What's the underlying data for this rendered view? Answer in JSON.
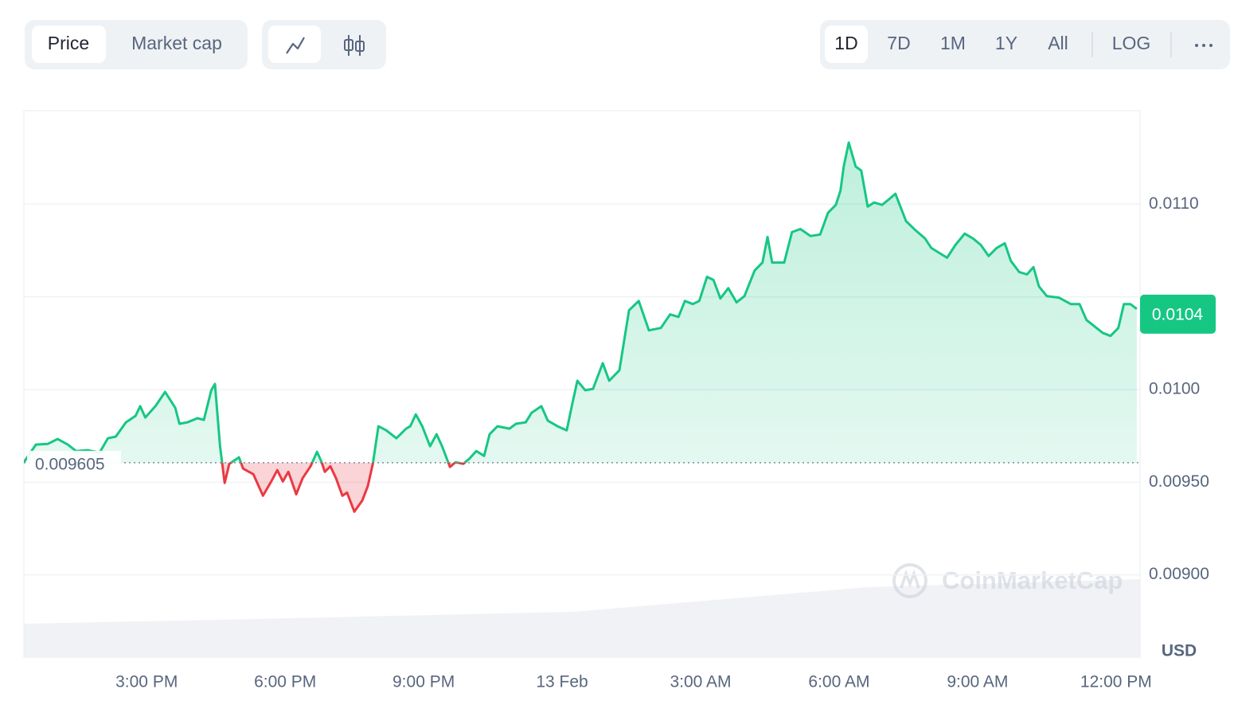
{
  "controls": {
    "metric_tabs": [
      "Price",
      "Market cap"
    ],
    "ranges": [
      "1D",
      "7D",
      "1M",
      "1Y",
      "All"
    ],
    "log": "LOG"
  },
  "chart_data": {
    "type": "line",
    "color": "#16c784",
    "down_color": "#ea3943",
    "baseline": 0.009605,
    "current_price": 0.0104,
    "y_unit": "USD",
    "watermark": "CoinMarketCap",
    "x": [
      12.34,
      12.6,
      12.86,
      13.07,
      13.29,
      13.47,
      13.72,
      13.98,
      14.16,
      14.33,
      14.55,
      14.76,
      14.86,
      14.97,
      15.19,
      15.4,
      15.62,
      15.71,
      15.88,
      16.1,
      16.24,
      16.4,
      16.48,
      16.59,
      16.69,
      16.79,
      17,
      17.09,
      17.31,
      17.52,
      17.69,
      17.83,
      17.95,
      18.07,
      18.24,
      18.38,
      18.55,
      18.69,
      18.79,
      18.86,
      18.98,
      19.1,
      19.24,
      19.34,
      19.5,
      19.67,
      19.79,
      19.9,
      20.02,
      20.19,
      20.41,
      20.62,
      20.71,
      20.83,
      20.97,
      21.14,
      21.28,
      21.4,
      21.57,
      21.69,
      21.86,
      22,
      22.14,
      22.31,
      22.43,
      22.6,
      22.86,
      23,
      23.21,
      23.34,
      23.55,
      23.69,
      23.9,
      24.1,
      24.21,
      24.33,
      24.5,
      24.67,
      24.88,
      25.02,
      25.24,
      25.45,
      25.66,
      25.88,
      26.14,
      26.34,
      26.52,
      26.66,
      26.83,
      26.97,
      27.14,
      27.28,
      27.43,
      27.6,
      27.78,
      27.95,
      28.17,
      28.34,
      28.45,
      28.55,
      28.81,
      28.98,
      29.16,
      29.38,
      29.59,
      29.76,
      29.93,
      30.03,
      30.1,
      30.21,
      30.36,
      30.48,
      30.62,
      30.76,
      30.93,
      31.1,
      31.22,
      31.45,
      31.66,
      31.86,
      32,
      32.17,
      32.34,
      32.52,
      32.72,
      32.9,
      33.07,
      33.24,
      33.41,
      33.59,
      33.72,
      33.9,
      34.07,
      34.21,
      34.33,
      34.5,
      34.76,
      35.02,
      35.21,
      35.36,
      35.53,
      35.71,
      35.88,
      36.05,
      36.17,
      36.31,
      36.45
    ],
    "values": [
      0.009608,
      0.009703,
      0.009707,
      0.009733,
      0.009703,
      0.009668,
      0.009673,
      0.00966,
      0.009737,
      0.009746,
      0.009823,
      0.009858,
      0.00991,
      0.009849,
      0.00991,
      0.009987,
      0.009901,
      0.009815,
      0.009823,
      0.009845,
      0.009836,
      0.009996,
      0.01003,
      0.009694,
      0.009496,
      0.009599,
      0.009634,
      0.009573,
      0.009543,
      0.009427,
      0.0095,
      0.009565,
      0.009504,
      0.009556,
      0.009435,
      0.009522,
      0.009586,
      0.009664,
      0.009608,
      0.009556,
      0.009586,
      0.009522,
      0.009427,
      0.009444,
      0.009341,
      0.009401,
      0.009479,
      0.009599,
      0.009802,
      0.00978,
      0.009737,
      0.009789,
      0.009802,
      0.009866,
      0.009802,
      0.009694,
      0.009759,
      0.009694,
      0.009582,
      0.009608,
      0.009599,
      0.009629,
      0.009668,
      0.009642,
      0.009759,
      0.009802,
      0.009789,
      0.009815,
      0.009823,
      0.009875,
      0.00991,
      0.009832,
      0.009802,
      0.00978,
      0.00991,
      0.010047,
      0.009996,
      0.010004,
      0.010142,
      0.010047,
      0.010104,
      0.010427,
      0.010478,
      0.010319,
      0.010332,
      0.010405,
      0.010392,
      0.010478,
      0.010461,
      0.010478,
      0.010608,
      0.010591,
      0.010491,
      0.010547,
      0.01047,
      0.010504,
      0.010642,
      0.010685,
      0.010823,
      0.010685,
      0.010685,
      0.010849,
      0.010866,
      0.010828,
      0.010836,
      0.010953,
      0.010996,
      0.011073,
      0.011203,
      0.011332,
      0.011203,
      0.011181,
      0.010987,
      0.011009,
      0.010996,
      0.01103,
      0.011056,
      0.010909,
      0.010858,
      0.010815,
      0.010763,
      0.010737,
      0.010711,
      0.01078,
      0.010841,
      0.010815,
      0.01078,
      0.01072,
      0.010763,
      0.010789,
      0.010694,
      0.010634,
      0.010621,
      0.01066,
      0.010556,
      0.010504,
      0.010496,
      0.010461,
      0.010461,
      0.010375,
      0.010341,
      0.010306,
      0.010289,
      0.010332,
      0.010461,
      0.010461,
      0.010435
    ],
    "xlim": [
      12.34,
      36.52
    ],
    "xticks": [
      {
        "value": 15,
        "label": "3:00 PM"
      },
      {
        "value": 18,
        "label": "6:00 PM"
      },
      {
        "value": 21,
        "label": "9:00 PM"
      },
      {
        "value": 24,
        "label": "13 Feb"
      },
      {
        "value": 27,
        "label": "3:00 AM"
      },
      {
        "value": 30,
        "label": "6:00 AM"
      },
      {
        "value": 33,
        "label": "9:00 AM"
      },
      {
        "value": 36,
        "label": "12:00 PM"
      }
    ],
    "ylim": [
      0.008556,
      0.011504
    ],
    "yticks": [
      {
        "value": 0.009,
        "label": "0.00900"
      },
      {
        "value": 0.0095,
        "label": "0.00950"
      },
      {
        "value": 0.01,
        "label": "0.0100"
      },
      {
        "value": 0.0105,
        "label": null
      },
      {
        "value": 0.011,
        "label": "0.0110"
      }
    ],
    "grid": true
  }
}
